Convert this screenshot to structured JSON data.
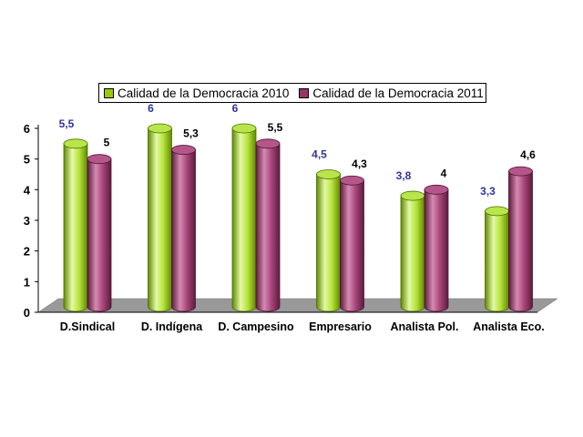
{
  "chart_data": {
    "type": "bar",
    "categories": [
      "D.Sindical",
      "D. Indígena",
      "D. Campesino",
      "Empresario",
      "Analista Pol.",
      "Analista Eco."
    ],
    "series": [
      {
        "name": "Calidad de la Democracia 2010",
        "values": [
          5.5,
          6,
          6,
          4.5,
          3.8,
          3.3
        ],
        "labels": [
          "5,5",
          "6",
          "6",
          "4,5",
          "3,8",
          "3,3"
        ]
      },
      {
        "name": "Calidad de la Democracia 2011",
        "values": [
          5,
          5.3,
          5.5,
          4.3,
          4,
          4.6
        ],
        "labels": [
          "5",
          "5,3",
          "5,5",
          "4,3",
          "4",
          "4,6"
        ]
      }
    ],
    "yticks": [
      "0",
      "1",
      "2",
      "3",
      "4",
      "5",
      "6"
    ],
    "ylim": [
      0,
      6
    ],
    "legend": "top",
    "colors": {
      "series_2010": "#99cc00",
      "series_2011": "#993366",
      "label_2010": "#333399",
      "label_2011": "#000000",
      "floor": "#999999"
    }
  }
}
